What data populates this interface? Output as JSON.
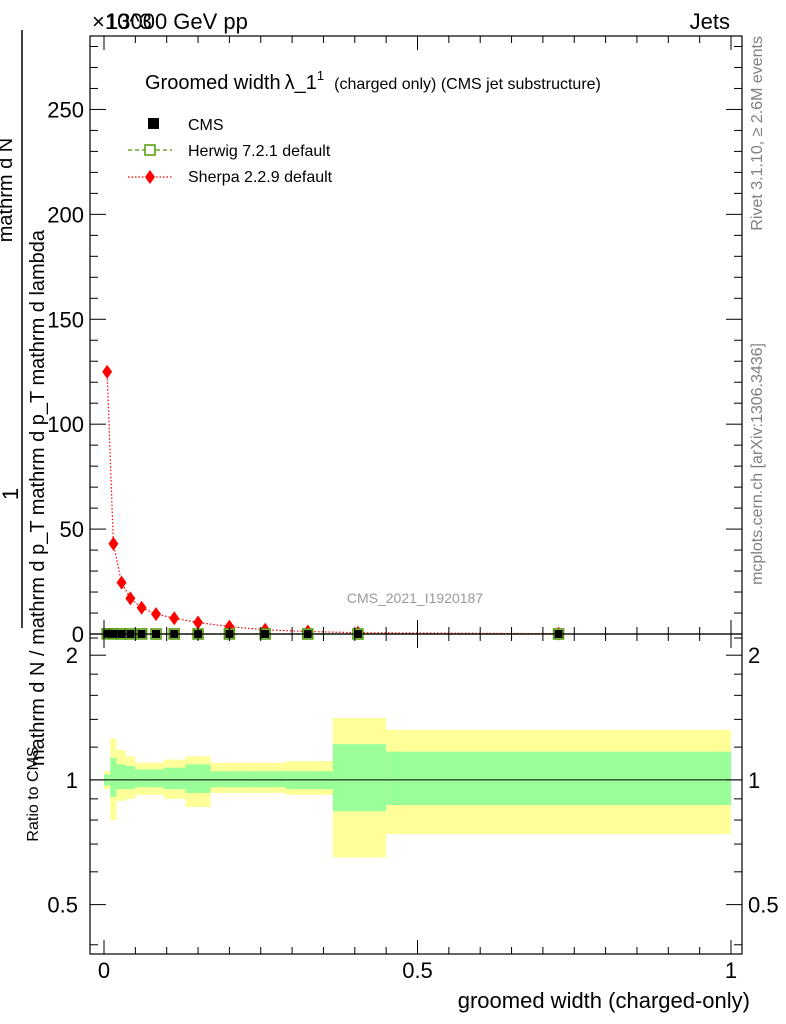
{
  "header": {
    "left": "13000 GeV pp",
    "right": "Jets",
    "exponent": "×10^3"
  },
  "side_text": {
    "rivet": "Rivet 3.1.10, ≥ 2.6M events",
    "mcplots": "mcplots.cern.ch [arXiv:1306.3436]"
  },
  "watermark": "CMS_2021_I1920187",
  "title": {
    "main": "Groomed width",
    "lambda": "λ_1",
    "superscript": "1",
    "suffix": "(charged only) (CMS jet substructure)"
  },
  "ylabel": {
    "one": "1",
    "den": "mathrm d N / mathrm d p_T mathrm d p_T mathrm d lambda",
    "num": "mathrm d N"
  },
  "ratio_ylabel": "Ratio to CMS",
  "xlabel": "groomed width (charged-only)",
  "legend": [
    {
      "name": "CMS",
      "color": "#000000",
      "style": "square"
    },
    {
      "name": "Herwig 7.2.1 default",
      "color": "#4d9900",
      "style": "open-square-dashed"
    },
    {
      "name": "Sherpa 2.2.9 default",
      "color": "#ff0000",
      "style": "diamond-dotted"
    }
  ],
  "chart_data": {
    "type": "line",
    "x_ticks": [
      "0",
      "0.5",
      "1"
    ],
    "main": {
      "ylim": [
        0,
        285
      ],
      "y_ticks": [
        "0",
        "50",
        "100",
        "150",
        "200",
        "250"
      ],
      "series": [
        {
          "name": "Sherpa 2.2.9 default",
          "x": [
            0.005,
            0.015,
            0.028,
            0.042,
            0.06,
            0.083,
            0.112,
            0.15,
            0.2,
            0.257,
            0.325,
            0.405,
            0.725
          ],
          "y": [
            125,
            43,
            24.5,
            17,
            12.5,
            9.5,
            7.5,
            5.5,
            3.5,
            2,
            1.2,
            0.6,
            0.15
          ]
        },
        {
          "name": "Herwig 7.2.1 default",
          "x": [
            0.005,
            0.015,
            0.028,
            0.042,
            0.06,
            0.083,
            0.112,
            0.15,
            0.2,
            0.257,
            0.325,
            0.405,
            0.725
          ],
          "y": [
            0.1,
            0.05,
            0.03,
            0.02,
            0.015,
            0.012,
            0.01,
            0.008,
            0.005,
            0.003,
            0.002,
            0.001,
            0.0002
          ]
        },
        {
          "name": "CMS",
          "x": [
            0.005,
            0.015,
            0.028,
            0.042,
            0.06,
            0.083,
            0.112,
            0.15,
            0.2,
            0.257,
            0.325,
            0.405,
            0.725
          ],
          "y": [
            0.1,
            0.05,
            0.03,
            0.02,
            0.015,
            0.012,
            0.01,
            0.008,
            0.005,
            0.003,
            0.002,
            0.001,
            0.0002
          ]
        }
      ]
    },
    "ratio": {
      "ylim": [
        0.38,
        2.25
      ],
      "y_ticks": [
        "0.5",
        "1",
        "2"
      ],
      "bands": [
        {
          "x0": 0.0,
          "x1": 0.01,
          "g_lo": 0.97,
          "g_hi": 1.03,
          "y_lo": 0.95,
          "y_hi": 1.05
        },
        {
          "x0": 0.01,
          "x1": 0.02,
          "g_lo": 0.91,
          "g_hi": 1.13,
          "y_lo": 0.8,
          "y_hi": 1.26
        },
        {
          "x0": 0.02,
          "x1": 0.035,
          "g_lo": 0.95,
          "g_hi": 1.09,
          "y_lo": 0.89,
          "y_hi": 1.18
        },
        {
          "x0": 0.035,
          "x1": 0.05,
          "g_lo": 0.95,
          "g_hi": 1.08,
          "y_lo": 0.9,
          "y_hi": 1.14
        },
        {
          "x0": 0.05,
          "x1": 0.07,
          "g_lo": 0.96,
          "g_hi": 1.06,
          "y_lo": 0.92,
          "y_hi": 1.1
        },
        {
          "x0": 0.07,
          "x1": 0.095,
          "g_lo": 0.96,
          "g_hi": 1.06,
          "y_lo": 0.92,
          "y_hi": 1.1
        },
        {
          "x0": 0.095,
          "x1": 0.13,
          "g_lo": 0.95,
          "g_hi": 1.07,
          "y_lo": 0.9,
          "y_hi": 1.12
        },
        {
          "x0": 0.13,
          "x1": 0.17,
          "g_lo": 0.93,
          "g_hi": 1.09,
          "y_lo": 0.86,
          "y_hi": 1.14
        },
        {
          "x0": 0.17,
          "x1": 0.23,
          "g_lo": 0.96,
          "g_hi": 1.05,
          "y_lo": 0.93,
          "y_hi": 1.1
        },
        {
          "x0": 0.23,
          "x1": 0.29,
          "g_lo": 0.96,
          "g_hi": 1.05,
          "y_lo": 0.93,
          "y_hi": 1.1
        },
        {
          "x0": 0.29,
          "x1": 0.365,
          "g_lo": 0.95,
          "g_hi": 1.05,
          "y_lo": 0.92,
          "y_hi": 1.11
        },
        {
          "x0": 0.365,
          "x1": 0.45,
          "g_lo": 0.84,
          "g_hi": 1.22,
          "y_lo": 0.65,
          "y_hi": 1.41
        },
        {
          "x0": 0.45,
          "x1": 1.0,
          "g_lo": 0.87,
          "g_hi": 1.17,
          "y_lo": 0.74,
          "y_hi": 1.32
        }
      ]
    },
    "colors": {
      "band_inner": "#99ff99",
      "band_outer": "#ffff99"
    }
  }
}
